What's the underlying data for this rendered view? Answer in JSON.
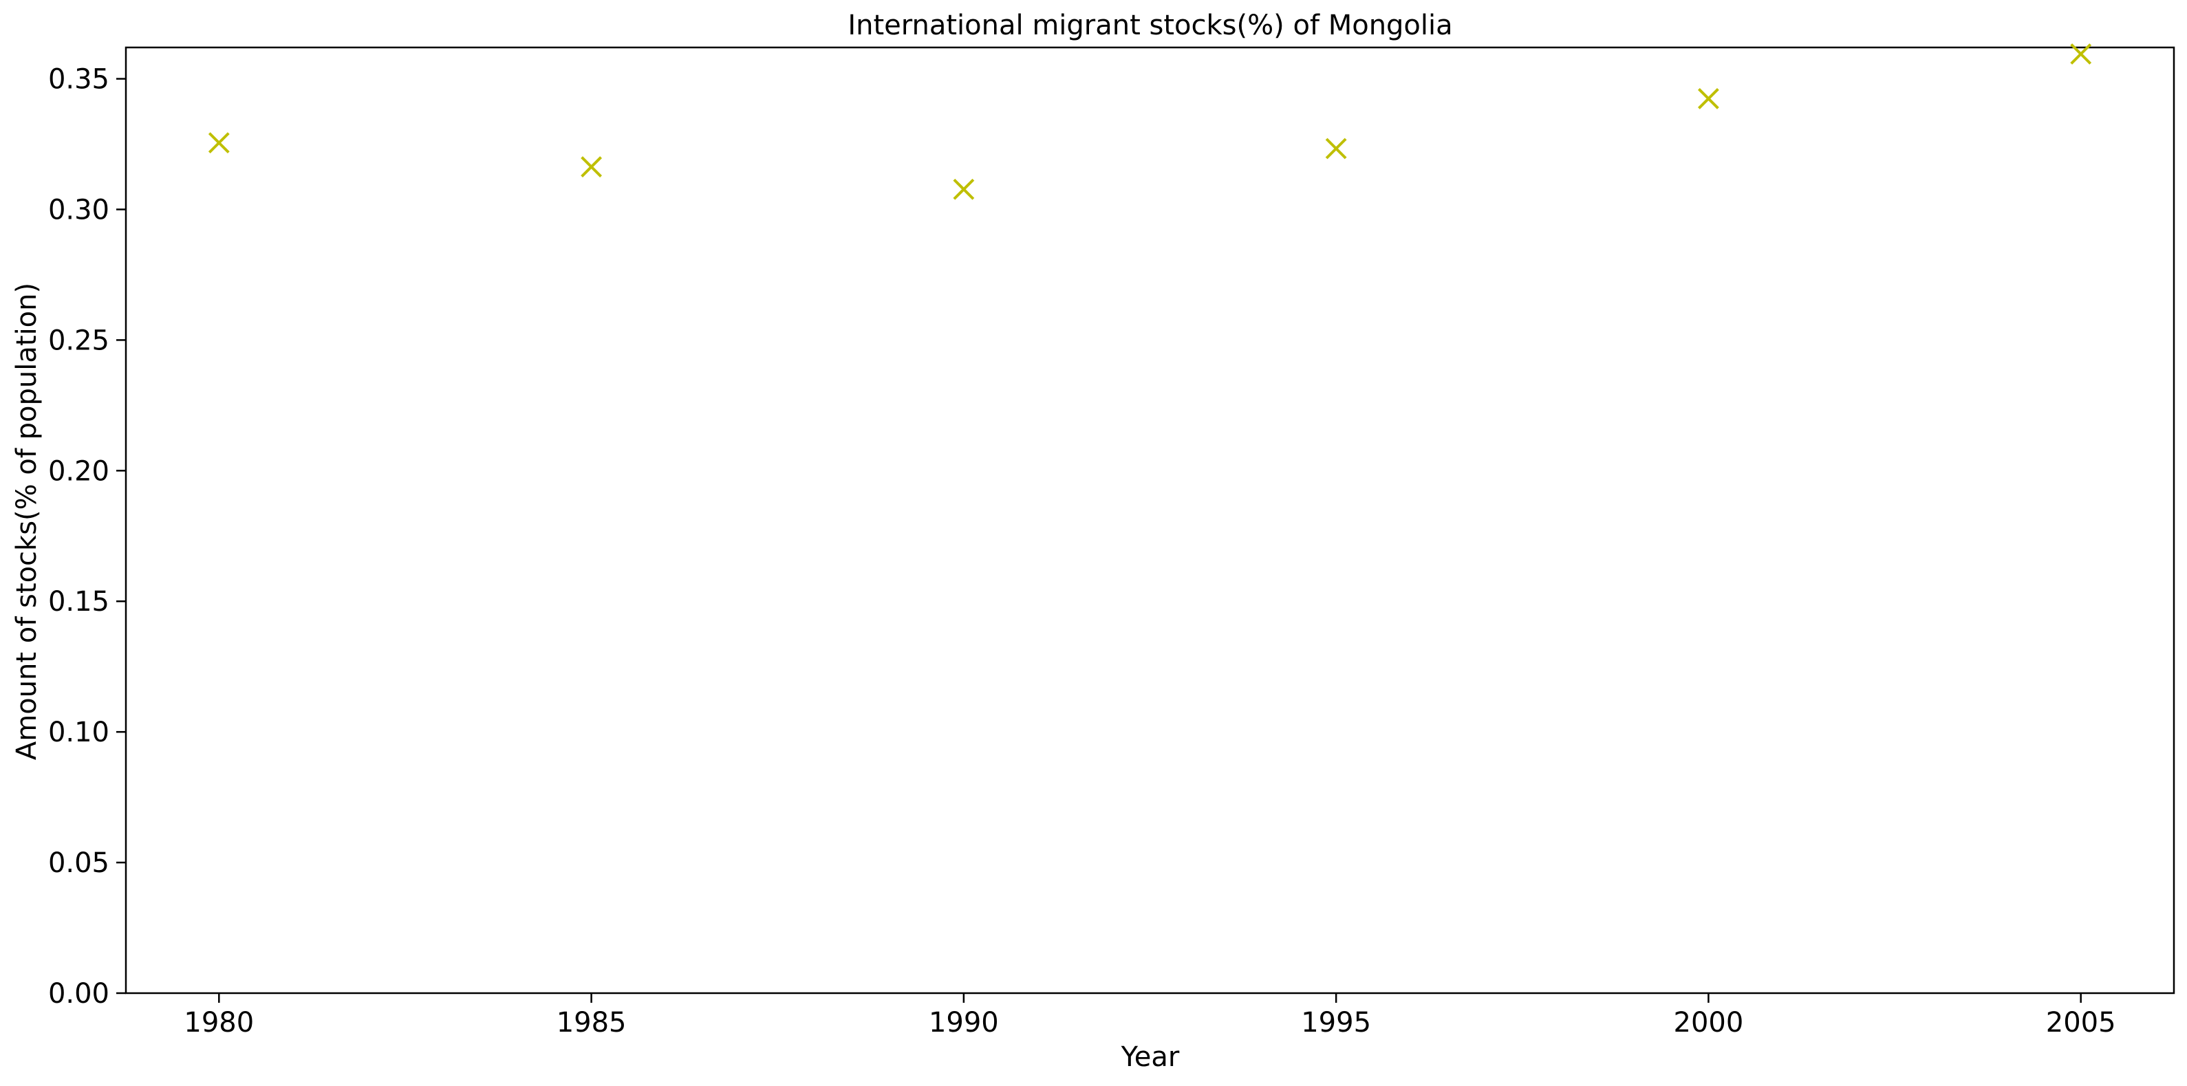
{
  "chart_data": {
    "type": "scatter",
    "title": "International migrant stocks(%) of Mongolia",
    "xlabel": "Year",
    "ylabel": "Amount of stocks(% of population)",
    "marker": "x",
    "color": "#bfbf00",
    "grid": false,
    "xlim": [
      1978.75,
      2006.25
    ],
    "ylim": [
      0.0,
      0.362
    ],
    "x_ticks": [
      1980,
      1985,
      1990,
      1995,
      2000,
      2005
    ],
    "y_ticks": [
      "0.00",
      "0.05",
      "0.10",
      "0.15",
      "0.20",
      "0.25",
      "0.30",
      "0.35"
    ],
    "series": [
      {
        "x": [
          1980,
          1985,
          1990,
          1995,
          2000,
          2005
        ],
        "y": [
          0.3255,
          0.3163,
          0.3077,
          0.3233,
          0.3424,
          0.3595
        ]
      }
    ]
  }
}
